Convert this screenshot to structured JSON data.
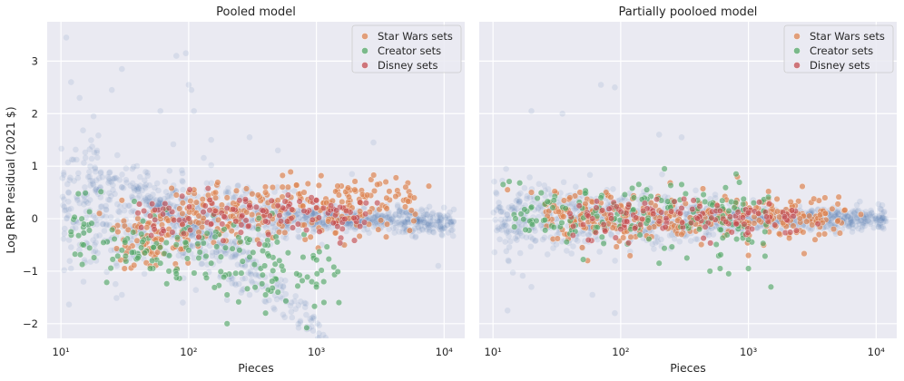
{
  "figure": {
    "ylabel": "Log RRP residual (2021 $)"
  },
  "colors": {
    "background": "#eaeaf2",
    "grid": "#ffffff",
    "all_sets": "#4c72b0",
    "star_wars": "#dd8452",
    "creator": "#55a868",
    "disney": "#c44e52"
  },
  "chart_data": [
    {
      "type": "scatter",
      "title": "Pooled model",
      "xlabel": "Pieces",
      "ylabel": "Log RRP residual (2021 $)",
      "xscale": "log",
      "xlim": [
        7.8,
        14500
      ],
      "ylim": [
        -2.28,
        3.75
      ],
      "xticks": [
        10,
        100,
        1000,
        10000
      ],
      "xtick_labels": [
        "10¹",
        "10²",
        "10³",
        "10⁴"
      ],
      "yticks": [
        -2,
        -1,
        0,
        1,
        2,
        3
      ],
      "ytick_labels": [
        "−2",
        "−1",
        "0",
        "1",
        "2",
        "3"
      ],
      "grid": true,
      "legend_position": "top-right",
      "series": [
        {
          "name": "",
          "color": "#4c72b0",
          "description": "all sets (faint background)",
          "sample": [
            [
              11,
              3.45
            ],
            [
              12,
              2.6
            ],
            [
              14,
              2.3
            ],
            [
              18,
              1.95
            ],
            [
              25,
              2.45
            ],
            [
              30,
              2.85
            ],
            [
              60,
              2.05
            ],
            [
              80,
              3.1
            ],
            [
              95,
              3.15
            ],
            [
              100,
              2.55
            ],
            [
              105,
              2.45
            ],
            [
              110,
              2.05
            ],
            [
              150,
              1.5
            ],
            [
              300,
              1.55
            ],
            [
              500,
              1.3
            ],
            [
              12,
              -0.95
            ],
            [
              15,
              -1.2
            ],
            [
              30,
              -1.45
            ],
            [
              45,
              -1.05
            ],
            [
              90,
              -1.6
            ],
            [
              200,
              -1.55
            ],
            [
              300,
              -1.45
            ],
            [
              9000,
              -0.9
            ],
            [
              2800,
              1.45
            ],
            [
              1900,
              0.85
            ]
          ]
        },
        {
          "name": "Star Wars sets",
          "color": "#dd8452",
          "sample": [
            [
              30,
              0.35
            ],
            [
              40,
              0.0
            ],
            [
              45,
              -0.65
            ],
            [
              50,
              -0.9
            ],
            [
              55,
              -0.4
            ],
            [
              60,
              0.05
            ],
            [
              70,
              -0.2
            ],
            [
              80,
              0.45
            ],
            [
              90,
              0.3
            ],
            [
              100,
              0.5
            ],
            [
              110,
              0.55
            ],
            [
              120,
              0.05
            ],
            [
              150,
              0.3
            ],
            [
              200,
              0.4
            ],
            [
              250,
              0.05
            ],
            [
              300,
              0.3
            ],
            [
              350,
              0.45
            ],
            [
              400,
              0.5
            ],
            [
              500,
              0.35
            ],
            [
              600,
              0.6
            ],
            [
              800,
              0.5
            ],
            [
              1000,
              0.2
            ],
            [
              1200,
              0.3
            ],
            [
              1500,
              0.45
            ],
            [
              2000,
              0.55
            ],
            [
              2500,
              0.45
            ],
            [
              3000,
              0.65
            ],
            [
              3500,
              0.7
            ],
            [
              4200,
              0.78
            ],
            [
              5000,
              0.6
            ],
            [
              7600,
              0.62
            ],
            [
              20,
              0.1
            ],
            [
              250,
              -0.45
            ],
            [
              900,
              -0.35
            ]
          ]
        },
        {
          "name": "Creator sets",
          "color": "#55a868",
          "sample": [
            [
              12,
              -0.25
            ],
            [
              15,
              -0.5
            ],
            [
              30,
              -0.6
            ],
            [
              40,
              -0.75
            ],
            [
              50,
              -0.95
            ],
            [
              60,
              -0.85
            ],
            [
              70,
              -1.0
            ],
            [
              80,
              -1.05
            ],
            [
              100,
              -0.6
            ],
            [
              120,
              -0.75
            ],
            [
              150,
              -0.85
            ],
            [
              200,
              -1.45
            ],
            [
              200,
              -2.0
            ],
            [
              250,
              -0.6
            ],
            [
              300,
              -0.4
            ],
            [
              400,
              -1.45
            ],
            [
              400,
              -1.8
            ],
            [
              500,
              -1.4
            ],
            [
              600,
              -0.65
            ],
            [
              700,
              -1.05
            ],
            [
              800,
              -0.3
            ],
            [
              1000,
              -1.25
            ],
            [
              1000,
              -1.3
            ],
            [
              1500,
              -1.6
            ],
            [
              350,
              -0.2
            ],
            [
              450,
              0.1
            ]
          ]
        },
        {
          "name": "Disney sets",
          "color": "#c44e52",
          "sample": [
            [
              50,
              0.05
            ],
            [
              70,
              0.2
            ],
            [
              100,
              0.0
            ],
            [
              120,
              -0.35
            ],
            [
              150,
              -0.1
            ],
            [
              200,
              0.2
            ],
            [
              250,
              0.35
            ],
            [
              300,
              0.25
            ],
            [
              400,
              -0.05
            ],
            [
              500,
              0.25
            ],
            [
              600,
              0.45
            ],
            [
              800,
              0.15
            ],
            [
              1000,
              0.35
            ],
            [
              1300,
              0.25
            ],
            [
              3000,
              0.3
            ]
          ]
        }
      ]
    },
    {
      "type": "scatter",
      "title": "Partially pooloed model",
      "xlabel": "Pieces",
      "ylabel": "",
      "xscale": "log",
      "xlim": [
        7.8,
        14500
      ],
      "ylim": [
        -2.28,
        3.75
      ],
      "xticks": [
        10,
        100,
        1000,
        10000
      ],
      "xtick_labels": [
        "10¹",
        "10²",
        "10³",
        "10⁴"
      ],
      "yticks": [
        -2,
        -1,
        0,
        1,
        2,
        3
      ],
      "ytick_labels": [],
      "grid": true,
      "legend_position": "top-right",
      "series": [
        {
          "name": "",
          "color": "#4c72b0",
          "description": "all sets (faint background)",
          "sample": [
            [
              70,
              2.55
            ],
            [
              90,
              2.5
            ],
            [
              20,
              2.05
            ],
            [
              35,
              2.0
            ],
            [
              200,
              1.6
            ],
            [
              300,
              1.55
            ],
            [
              13,
              -1.75
            ],
            [
              20,
              -1.3
            ],
            [
              60,
              -1.45
            ],
            [
              90,
              -1.8
            ],
            [
              6500,
              -0.25
            ],
            [
              9000,
              -0.1
            ],
            [
              11500,
              0.0
            ]
          ]
        },
        {
          "name": "Star Wars sets",
          "color": "#dd8452",
          "sample": [
            [
              13,
              0.55
            ],
            [
              20,
              0.5
            ],
            [
              30,
              0.25
            ],
            [
              40,
              0.4
            ],
            [
              50,
              -0.55
            ],
            [
              55,
              -0.8
            ],
            [
              60,
              0.15
            ],
            [
              70,
              0.3
            ],
            [
              80,
              -0.1
            ],
            [
              100,
              0.25
            ],
            [
              120,
              -0.35
            ],
            [
              150,
              0.2
            ],
            [
              200,
              -0.1
            ],
            [
              250,
              0.35
            ],
            [
              300,
              -0.3
            ],
            [
              400,
              0.15
            ],
            [
              500,
              0.1
            ],
            [
              600,
              -0.05
            ],
            [
              800,
              0.3
            ],
            [
              1000,
              -0.15
            ],
            [
              1200,
              0.1
            ],
            [
              1500,
              0.05
            ],
            [
              2000,
              0.1
            ],
            [
              3000,
              0.05
            ],
            [
              4000,
              0.1
            ],
            [
              5000,
              -0.05
            ],
            [
              7600,
              0.08
            ],
            [
              1000,
              -0.7
            ]
          ]
        },
        {
          "name": "Creator sets",
          "color": "#55a868",
          "sample": [
            [
              12,
              0.65
            ],
            [
              15,
              0.0
            ],
            [
              30,
              0.35
            ],
            [
              50,
              0.2
            ],
            [
              70,
              0.4
            ],
            [
              90,
              0.0
            ],
            [
              120,
              -0.2
            ],
            [
              160,
              0.55
            ],
            [
              200,
              -0.85
            ],
            [
              220,
              0.95
            ],
            [
              300,
              0.65
            ],
            [
              330,
              -0.75
            ],
            [
              400,
              0.35
            ],
            [
              500,
              -1.0
            ],
            [
              600,
              -0.95
            ],
            [
              700,
              -1.05
            ],
            [
              800,
              0.85
            ],
            [
              1000,
              -0.95
            ],
            [
              1100,
              0.3
            ],
            [
              1500,
              -1.3
            ],
            [
              1000,
              -0.4
            ]
          ]
        },
        {
          "name": "Disney sets",
          "color": "#c44e52",
          "sample": [
            [
              40,
              0.1
            ],
            [
              60,
              0.0
            ],
            [
              100,
              -0.2
            ],
            [
              150,
              0.15
            ],
            [
              200,
              -0.05
            ],
            [
              300,
              0.2
            ],
            [
              400,
              0.0
            ],
            [
              600,
              0.15
            ],
            [
              800,
              -0.1
            ],
            [
              1200,
              0.1
            ],
            [
              3500,
              -0.1
            ]
          ]
        }
      ]
    }
  ]
}
